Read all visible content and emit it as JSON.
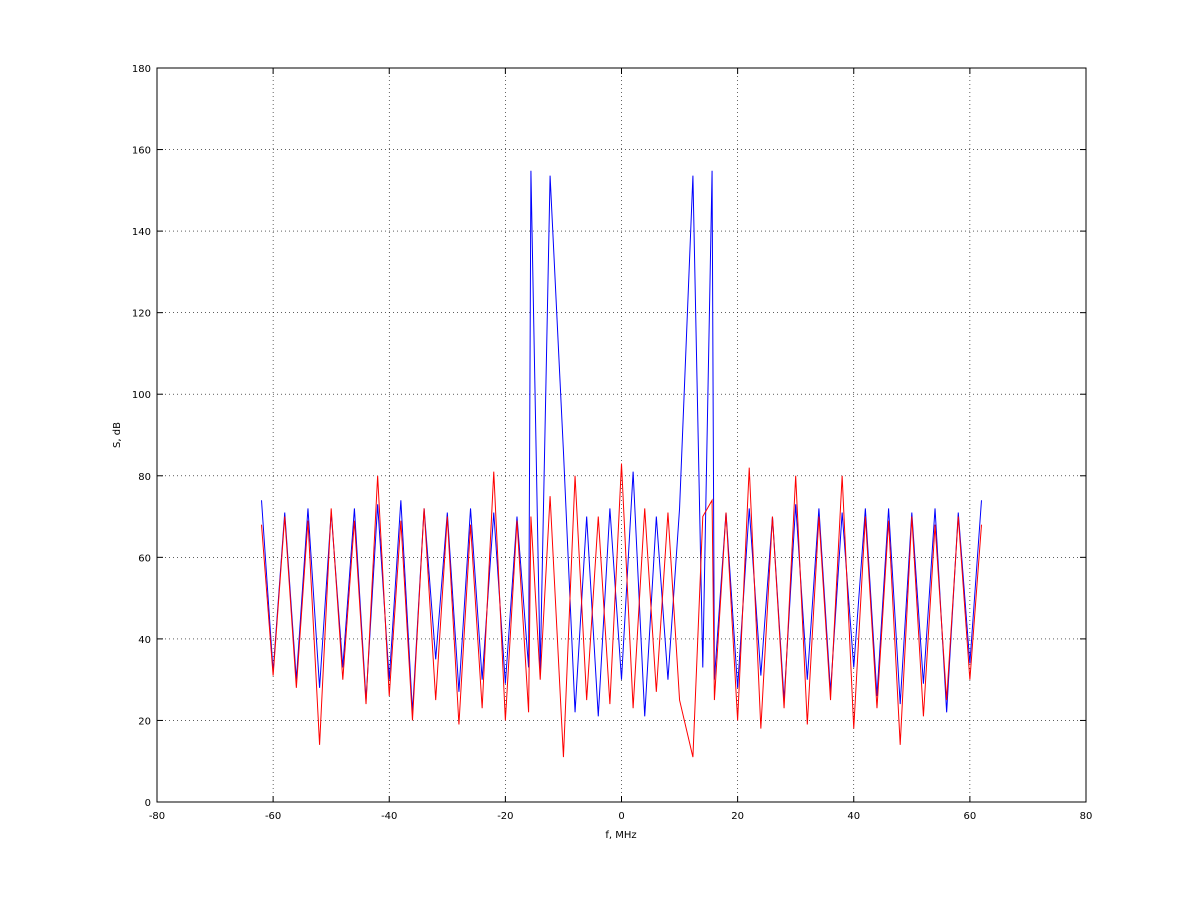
{
  "chart_data": {
    "type": "line",
    "xlabel": "f, MHz",
    "ylabel": "S, dB",
    "x": [
      -62,
      -60,
      -58,
      -56,
      -54,
      -52,
      -50,
      -48,
      -46,
      -44,
      -42,
      -40,
      -38,
      -36,
      -34,
      -32,
      -30,
      -28,
      -26,
      -24,
      -22,
      -20,
      -18,
      -16,
      -15.6,
      -14,
      -12.3,
      -10,
      -8,
      -6,
      -4,
      -2,
      0,
      2,
      4,
      6,
      8,
      10,
      12.3,
      14,
      15.6,
      16,
      18,
      20,
      22,
      24,
      26,
      28,
      30,
      32,
      34,
      36,
      38,
      40,
      42,
      44,
      46,
      48,
      50,
      52,
      54,
      56,
      58,
      60,
      62
    ],
    "series": [
      {
        "color": "#0000ff",
        "values": [
          74,
          32,
          71,
          30,
          72,
          28,
          71,
          33,
          72,
          25,
          73,
          30,
          74,
          22,
          72,
          35,
          71,
          27,
          72,
          30,
          71,
          29,
          70,
          33,
          154.8,
          32,
          153.6,
          86,
          22,
          70,
          21,
          72,
          30,
          81,
          21,
          70,
          30,
          72,
          153.6,
          33,
          154.8,
          30,
          71,
          28,
          72,
          31,
          70,
          25,
          73,
          30,
          72,
          27,
          71,
          33,
          72,
          26,
          72,
          24,
          71,
          29,
          72,
          22,
          71,
          34,
          74
        ]
      },
      {
        "color": "#ff0000",
        "values": [
          68,
          31,
          70,
          28,
          69,
          14,
          72,
          30,
          69,
          24,
          80,
          26,
          69,
          20,
          72,
          25,
          70,
          19,
          68,
          23,
          81,
          20,
          69,
          22,
          70,
          30,
          75,
          11,
          80,
          25,
          70,
          24,
          83,
          23,
          72,
          27,
          71,
          25,
          11,
          70,
          74,
          25,
          71,
          20,
          82,
          18,
          70,
          23,
          80,
          19,
          70,
          25,
          80,
          18,
          70,
          23,
          69,
          14,
          70,
          21,
          68,
          25,
          70,
          30,
          68
        ]
      }
    ],
    "xlim": [
      -80,
      80
    ],
    "xticks": [
      -80,
      -60,
      -40,
      -20,
      0,
      20,
      40,
      60,
      80
    ],
    "ylim": [
      0,
      180
    ],
    "yticks": [
      0,
      20,
      40,
      60,
      80,
      100,
      120,
      140,
      160,
      180
    ],
    "grid": true
  }
}
